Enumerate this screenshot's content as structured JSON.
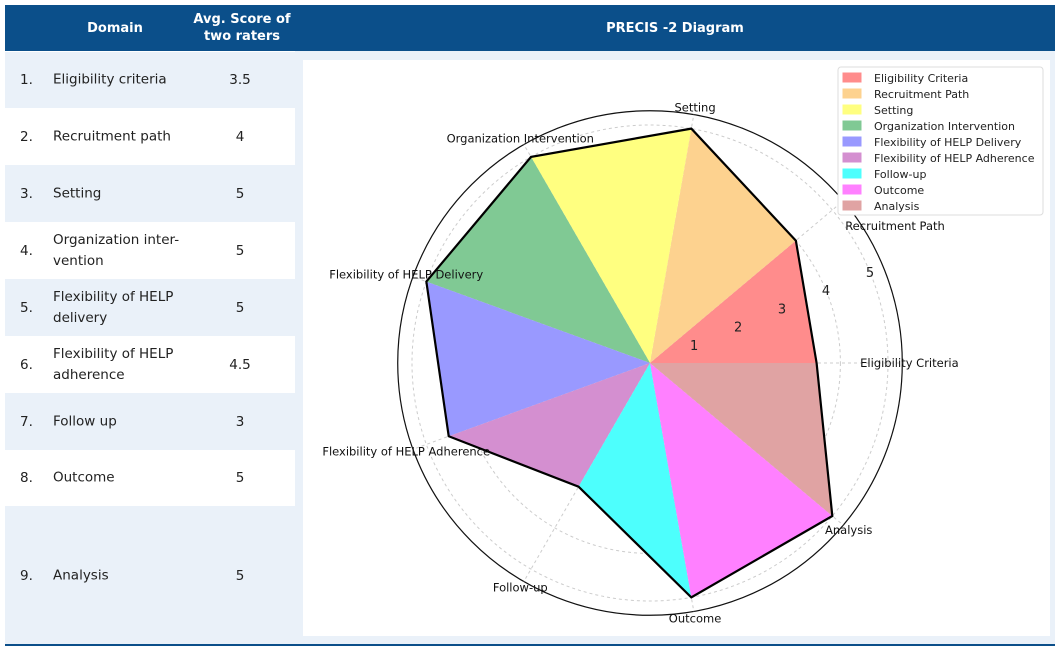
{
  "header": {
    "domain": "Domain",
    "score": "Avg. Score of two raters",
    "diagram": "PRECIS -2 Diagram"
  },
  "rows": [
    {
      "num": "1.",
      "domain": "Eligibility criteria",
      "score": "3.5"
    },
    {
      "num": "2.",
      "domain": "Recruitment path",
      "score": "4"
    },
    {
      "num": "3.",
      "domain": "Setting",
      "score": "5"
    },
    {
      "num": "4.",
      "domain": "Organization inter-vention",
      "score": "5"
    },
    {
      "num": "5.",
      "domain": "Flexibility of HELP delivery",
      "score": "5"
    },
    {
      "num": "6.",
      "domain": "Flexibility of HELP adherence",
      "score": "4.5"
    },
    {
      "num": "7.",
      "domain": "Follow up",
      "score": "3"
    },
    {
      "num": "8.",
      "domain": "Outcome",
      "score": "5"
    },
    {
      "num": "9.",
      "domain": "Analysis",
      "score": "5"
    }
  ],
  "chart_data": {
    "type": "radar",
    "categories": [
      "Eligibility Criteria",
      "Recruitment Path",
      "Setting",
      "Organization Intervention",
      "Flexibility of HELP Delivery",
      "Flexibility of HELP Adherence",
      "Follow-up",
      "Outcome",
      "Analysis"
    ],
    "values": [
      3.5,
      4,
      5,
      5,
      5,
      4.5,
      3,
      5,
      5
    ],
    "colors": [
      "#ff8c8c",
      "#fdd28f",
      "#ffff80",
      "#80c994",
      "#9999ff",
      "#d48fd0",
      "#4dfffd",
      "#ff80ff",
      "#e0a3a3"
    ],
    "radial_ticks": [
      "1",
      "2",
      "3",
      "4",
      "5"
    ],
    "rlim": [
      0,
      5.3
    ],
    "grid": true,
    "legend": "top-right"
  }
}
